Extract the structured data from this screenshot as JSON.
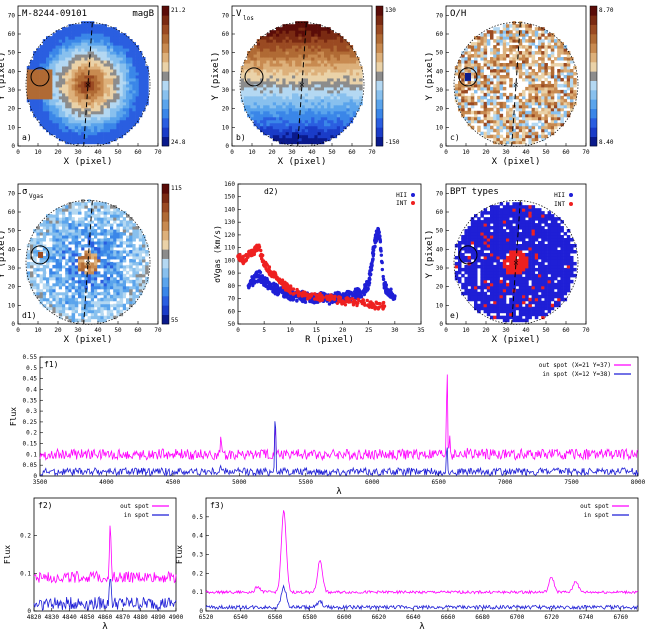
{
  "figure": {
    "galaxy_id": "M-8244-09101",
    "band": "magB"
  },
  "colors": {
    "magenta": "#ff00ff",
    "blue": "#1f1fd6",
    "red": "#ee2020",
    "cmap": [
      "#0a1a8c",
      "#1a3cc8",
      "#2a5ee0",
      "#3a86e8",
      "#5aa4ec",
      "#88c0ee",
      "#b4d8f2",
      "#8c8c8c",
      "#ead2a8",
      "#ddb07a",
      "#c88a50",
      "#b06a34",
      "#9a4a22",
      "#7a2a12",
      "#5a0c08"
    ]
  },
  "panels": {
    "a": {
      "label": "a)",
      "title": "M-8244-09101",
      "title2": "magB",
      "cbar_max": "21.2",
      "cbar_min": "24.8",
      "xlabel": "X  (pixel)",
      "ylabel": "Y  (pixel)"
    },
    "b": {
      "label": "b)",
      "title": "V",
      "title_sub": "los",
      "cbar_max": "130",
      "cbar_min": "-150",
      "xlabel": "X  (pixel)",
      "ylabel": "Y  (pixel)"
    },
    "c": {
      "label": "c)",
      "title": "O/H",
      "cbar_max": "8.70",
      "cbar_min": "8.40",
      "xlabel": "X  (pixel)",
      "ylabel": "Y  (pixel)"
    },
    "d1": {
      "label": "d1)",
      "title": "σ",
      "title_sub": "Vgas",
      "cbar_max": "115",
      "cbar_min": "55",
      "xlabel": "X  (pixel)",
      "ylabel": "Y  (pixel)"
    },
    "d2": {
      "label": "d2)",
      "xlabel": "R  (pixel)",
      "ylabel": "σVgas (km/s)",
      "legend": [
        "HII",
        "INT"
      ]
    },
    "e": {
      "label": "e)",
      "title": "BPT types",
      "xlabel": "X  (pixel)",
      "ylabel": "Y  (pixel)",
      "legend": [
        "HII",
        "INT"
      ]
    },
    "f1": {
      "label": "f1)",
      "xlabel": "λ",
      "ylabel": "Flux",
      "legend": [
        "out spot (X=21 Y=37)",
        "in spot (X=12 Y=38)"
      ]
    },
    "f2": {
      "label": "f2)",
      "xlabel": "λ",
      "ylabel": "Flux",
      "legend": [
        "out spot",
        "in spot"
      ]
    },
    "f3": {
      "label": "f3)",
      "xlabel": "λ",
      "ylabel": "Flux",
      "legend": [
        "out spot",
        "in spot"
      ]
    }
  },
  "chart_data": [
    {
      "id": "map_axes",
      "type": "heatmap",
      "xlim": [
        0,
        70
      ],
      "ylim": [
        0,
        75
      ],
      "xticks": [
        "0",
        "10",
        "20",
        "30",
        "40",
        "50",
        "60",
        "70"
      ],
      "yticks": [
        "0",
        "10",
        "20",
        "30",
        "40",
        "50",
        "60",
        "70"
      ]
    },
    {
      "id": "d2",
      "type": "scatter",
      "xlim": [
        0,
        35
      ],
      "ylim": [
        50,
        160
      ],
      "xticks": [
        "0",
        "5",
        "10",
        "15",
        "20",
        "25",
        "30",
        "35"
      ],
      "yticks": [
        "50",
        "60",
        "70",
        "80",
        "90",
        "100",
        "110",
        "120",
        "130",
        "140",
        "150",
        "160"
      ],
      "series": [
        {
          "name": "HII",
          "x": [
            2,
            3,
            4,
            5,
            6,
            7,
            8,
            9,
            10,
            11,
            12,
            13,
            14,
            15,
            16,
            17,
            18,
            19,
            20,
            21,
            22,
            23,
            24,
            25,
            25.5,
            26,
            26.5,
            27,
            28,
            29,
            30
          ],
          "y": [
            80,
            85,
            88,
            84,
            80,
            78,
            76,
            75,
            73,
            72,
            72,
            71,
            70,
            70,
            71,
            69,
            70,
            71,
            70,
            72,
            73,
            74,
            76,
            82,
            95,
            110,
            120,
            122,
            80,
            75,
            72
          ]
        },
        {
          "name": "INT",
          "x": [
            0,
            1,
            2,
            3,
            4,
            5,
            6,
            7,
            8,
            9,
            10,
            12,
            14,
            16,
            18,
            20,
            22,
            24,
            26,
            28
          ],
          "y": [
            103,
            100,
            104,
            107,
            110,
            98,
            92,
            88,
            84,
            80,
            77,
            74,
            72,
            71,
            70,
            68,
            67,
            66,
            65,
            64
          ]
        }
      ]
    },
    {
      "id": "f1",
      "type": "line",
      "xlim": [
        3500,
        8000
      ],
      "ylim": [
        0,
        0.55
      ],
      "xticks": [
        "3500",
        "4000",
        "4500",
        "5000",
        "5500",
        "6000",
        "6500",
        "7000",
        "7500",
        "8000"
      ],
      "yticks": [
        "0",
        "0.05",
        "0.1",
        "0.15",
        "0.2",
        "0.25",
        "0.3",
        "0.35",
        "0.4",
        "0.45",
        "0.5",
        "0.55"
      ],
      "series": [
        {
          "name": "out spot (X=21 Y=37)",
          "baseline": 0.1,
          "peaks": [
            [
              4861,
              0.16
            ],
            [
              5270,
              0.27
            ],
            [
              6563,
              0.53
            ],
            [
              6584,
              0.2
            ],
            [
              6717,
              0.13
            ]
          ]
        },
        {
          "name": "in spot (X=12 Y=38)",
          "baseline": 0.02,
          "peaks": [
            [
              4861,
              0.05
            ],
            [
              5270,
              0.33
            ],
            [
              6563,
              0.16
            ]
          ]
        }
      ]
    },
    {
      "id": "f2",
      "type": "line",
      "xlim": [
        4820,
        4900
      ],
      "ylim": [
        0,
        0.3
      ],
      "xticks": [
        "4820",
        "4830",
        "4840",
        "4850",
        "4860",
        "4870",
        "4880",
        "4890",
        "4900"
      ],
      "yticks": [
        "0",
        "0.1",
        "0.2"
      ],
      "series": [
        {
          "name": "out spot",
          "baseline": 0.09,
          "peaks": [
            [
              4863,
              0.225
            ]
          ]
        },
        {
          "name": "in spot",
          "baseline": 0.02,
          "peaks": [
            [
              4863,
              0.1
            ]
          ]
        }
      ]
    },
    {
      "id": "f3",
      "type": "line",
      "xlim": [
        6520,
        6770
      ],
      "ylim": [
        0,
        0.6
      ],
      "xticks": [
        "6520",
        "6540",
        "6560",
        "6580",
        "6600",
        "6620",
        "6640",
        "6660",
        "6680",
        "6700",
        "6720",
        "6740",
        "6760"
      ],
      "yticks": [
        "0",
        "0.1",
        "0.2",
        "0.3",
        "0.4",
        "0.5"
      ],
      "series": [
        {
          "name": "out spot",
          "baseline": 0.1,
          "peaks": [
            [
              6565,
              0.53
            ],
            [
              6586,
              0.27
            ],
            [
              6550,
              0.13
            ],
            [
              6720,
              0.18
            ],
            [
              6734,
              0.16
            ]
          ]
        },
        {
          "name": "in spot",
          "baseline": 0.02,
          "peaks": [
            [
              6565,
              0.13
            ],
            [
              6586,
              0.05
            ]
          ]
        }
      ]
    }
  ]
}
